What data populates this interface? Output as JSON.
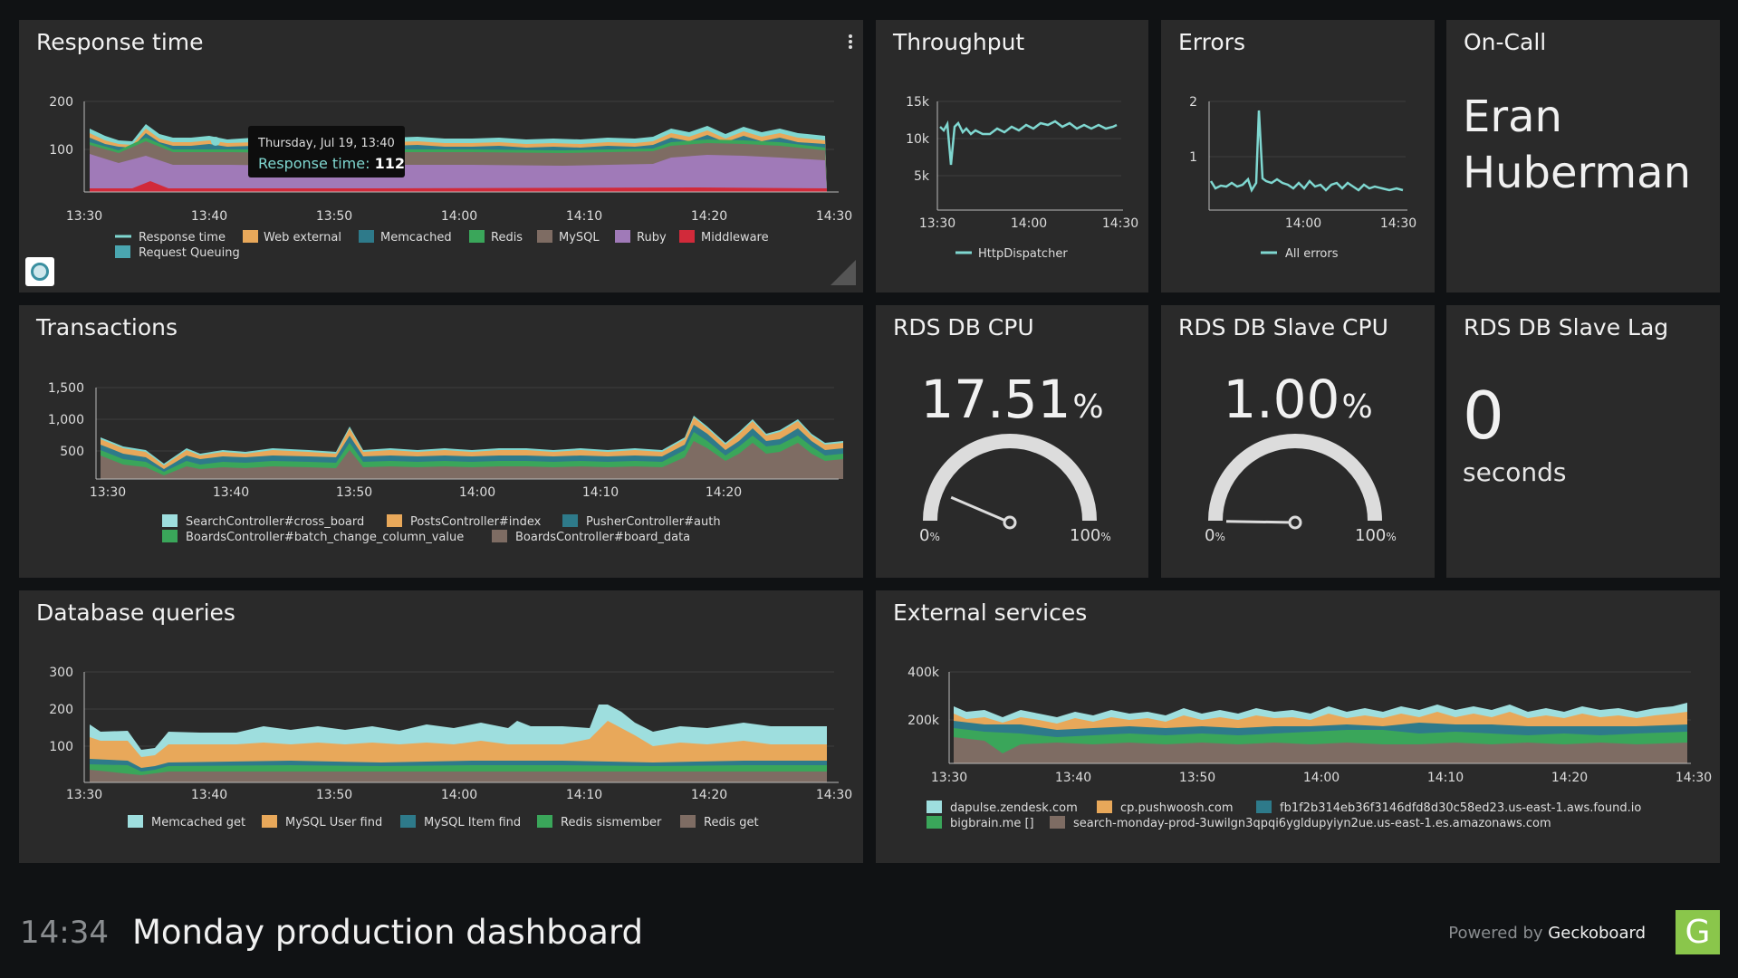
{
  "colors": {
    "bg": "#101214",
    "panel": "#2a2a2a",
    "teal": "#7fd7d0",
    "accent": "#8ac64b"
  },
  "response_time": {
    "title": "Response time",
    "y_ticks": [
      "200",
      "100"
    ],
    "x_ticks": [
      "13:30",
      "13:40",
      "13:50",
      "14:00",
      "14:10",
      "14:20",
      "14:30"
    ],
    "legend": [
      "Response time",
      "Web external",
      "Memcached",
      "Redis",
      "MySQL",
      "Ruby",
      "Middleware",
      "Request Queuing"
    ],
    "tooltip": {
      "date": "Thursday, Jul 19, 13:40",
      "label": "Response time:",
      "value": "112"
    }
  },
  "throughput": {
    "title": "Throughput",
    "y_ticks": [
      "15k",
      "10k",
      "5k"
    ],
    "x_ticks": [
      "13:30",
      "14:00",
      "14:30"
    ],
    "legend": "HttpDispatcher"
  },
  "errors": {
    "title": "Errors",
    "y_ticks": [
      "2",
      "1"
    ],
    "x_ticks": [
      "14:00",
      "14:30"
    ],
    "legend": "All errors"
  },
  "oncall": {
    "title": "On-Call",
    "name": "Eran Huberman"
  },
  "transactions": {
    "title": "Transactions",
    "y_ticks": [
      "1,500",
      "1,000",
      "500"
    ],
    "x_ticks": [
      "13:30",
      "13:40",
      "13:50",
      "14:00",
      "14:10",
      "14:20"
    ],
    "legend": [
      "SearchController#cross_board",
      "PostsController#index",
      "PusherController#auth",
      "BoardsController#batch_change_column_value",
      "BoardsController#board_data"
    ]
  },
  "rds_cpu": {
    "title": "RDS DB CPU",
    "value": "17.51",
    "unit": "%",
    "min": "0",
    "max": "100",
    "unit_small": "%",
    "fraction": 0.1751
  },
  "rds_slave_cpu": {
    "title": "RDS DB Slave CPU",
    "value": "1.00",
    "unit": "%",
    "min": "0",
    "max": "100",
    "unit_small": "%",
    "fraction": 0.01
  },
  "rds_slave_lag": {
    "title": "RDS DB Slave Lag",
    "value": "0",
    "unit": "seconds"
  },
  "db_queries": {
    "title": "Database queries",
    "y_ticks": [
      "300",
      "200",
      "100"
    ],
    "x_ticks": [
      "13:30",
      "13:40",
      "13:50",
      "14:00",
      "14:10",
      "14:20",
      "14:30"
    ],
    "legend": [
      "Memcached get",
      "MySQL User find",
      "MySQL Item find",
      "Redis sismember",
      "Redis get"
    ]
  },
  "external": {
    "title": "External services",
    "y_ticks": [
      "400k",
      "200k"
    ],
    "x_ticks": [
      "13:30",
      "13:40",
      "13:50",
      "14:00",
      "14:10",
      "14:20",
      "14:30"
    ],
    "legend": [
      "dapulse.zendesk.com",
      "cp.pushwoosh.com",
      "fb1f2b314eb36f3146dfd8d30c58ed23.us-east-1.aws.found.io",
      "bigbrain.me []",
      "search-monday-prod-3uwilgn3qpqi6ygldupyiyn2ue.us-east-1.es.amazonaws.com"
    ]
  },
  "footer": {
    "time": "14:34",
    "title": "Monday production dashboard",
    "powered_by": "Powered by",
    "brand": "Geckoboard",
    "logo_letter": "G"
  }
}
